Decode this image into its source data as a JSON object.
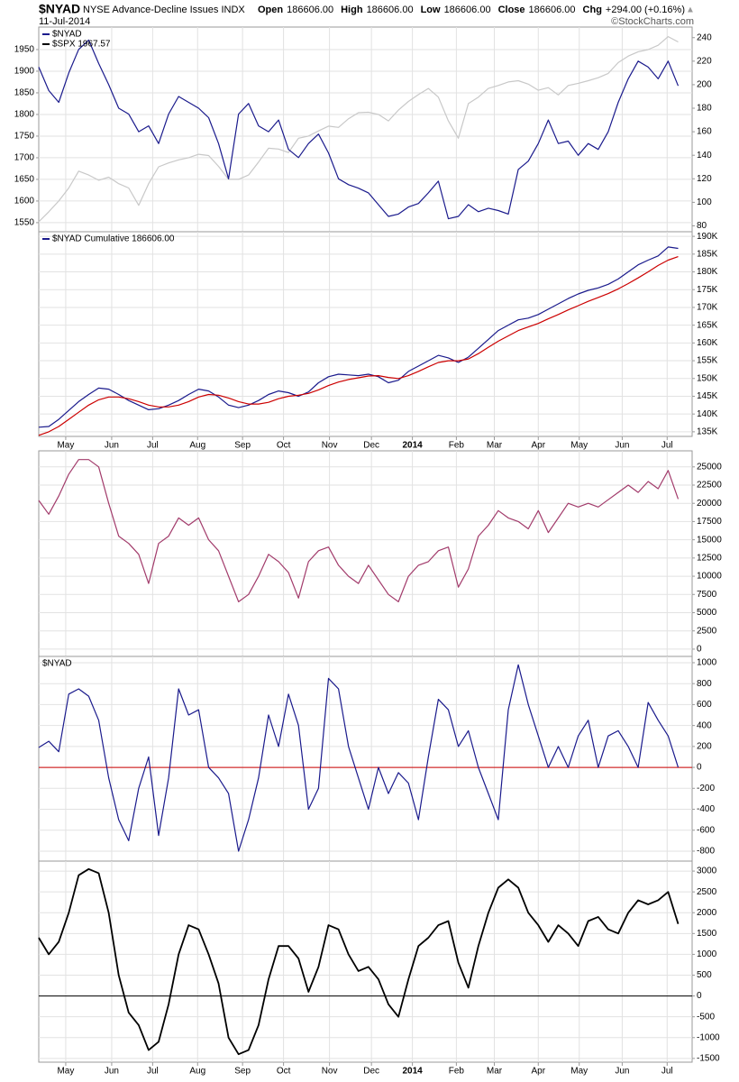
{
  "header": {
    "symbol": "$NYAD",
    "name": "NYSE Advance-Decline Issues INDX",
    "date": "11-Jul-2014",
    "quote": [
      {
        "label": "Open",
        "value": "186606.00"
      },
      {
        "label": "High",
        "value": "186606.00"
      },
      {
        "label": "Low",
        "value": "186606.00"
      },
      {
        "label": "Close",
        "value": "186606.00"
      },
      {
        "label": "Chg",
        "value": "+294.00 (+0.16%)"
      }
    ],
    "source": "©StockCharts.com"
  },
  "chart_data": [
    {
      "type": "line",
      "xlim": [
        0,
        65.4
      ],
      "ylim": [
        1529,
        2002
      ],
      "yticks": [
        1550,
        1600,
        1650,
        1700,
        1750,
        1800,
        1850,
        1900,
        1950
      ],
      "y_axis_side": "left",
      "y2lim": [
        75,
        249
      ],
      "y2ticks": [
        80,
        100,
        120,
        140,
        160,
        180,
        200,
        220,
        240
      ],
      "grid": true,
      "series": [
        {
          "name": "$NYAD",
          "color": "#1a1a8c",
          "axis": "y2",
          "values": [
            215,
            195,
            185,
            210,
            230,
            238,
            218,
            200,
            180,
            175,
            160,
            165,
            150,
            175,
            190,
            185,
            180,
            172,
            150,
            120,
            175,
            184,
            165,
            160,
            170,
            145,
            138,
            150,
            158,
            142,
            120,
            115,
            112,
            108,
            98,
            88,
            90,
            96,
            99,
            108,
            118,
            86,
            88,
            98,
            92,
            95,
            93,
            90,
            128,
            135,
            150,
            170,
            150,
            152,
            140,
            150,
            145,
            160,
            185,
            205,
            220,
            215,
            205,
            220,
            199
          ]
        },
        {
          "name": "$SPX 1967.57",
          "color": "#c8c8c8",
          "values": [
            1552,
            1575,
            1600,
            1630,
            1669,
            1660,
            1648,
            1655,
            1640,
            1630,
            1590,
            1640,
            1679,
            1688,
            1695,
            1700,
            1708,
            1705,
            1680,
            1650,
            1650,
            1660,
            1690,
            1722,
            1720,
            1712,
            1745,
            1750,
            1762,
            1773,
            1770,
            1790,
            1804,
            1805,
            1800,
            1785,
            1810,
            1830,
            1846,
            1860,
            1840,
            1785,
            1745,
            1825,
            1840,
            1860,
            1867,
            1875,
            1878,
            1870,
            1856,
            1862,
            1845,
            1867,
            1872,
            1878,
            1885,
            1895,
            1920,
            1935,
            1945,
            1950,
            1960,
            1980,
            1967.57
          ]
        }
      ]
    },
    {
      "type": "line",
      "xlim": [
        0,
        65.4
      ],
      "ylim": [
        133700,
        191300
      ],
      "y_axis_side": "right",
      "grid": true,
      "yticks": [
        {
          "value": 135000,
          "label": "135K"
        },
        {
          "value": 140000,
          "label": "140K"
        },
        {
          "value": 145000,
          "label": "145K"
        },
        {
          "value": 150000,
          "label": "150K"
        },
        {
          "value": 155000,
          "label": "155K"
        },
        {
          "value": 160000,
          "label": "160K"
        },
        {
          "value": 165000,
          "label": "165K"
        },
        {
          "value": 170000,
          "label": "170K"
        },
        {
          "value": 175000,
          "label": "175K"
        },
        {
          "value": 180000,
          "label": "180K"
        },
        {
          "value": 185000,
          "label": "185K"
        },
        {
          "value": 190000,
          "label": "190K"
        }
      ],
      "xticks": [
        {
          "value": 2.7,
          "label": "May"
        },
        {
          "value": 7.3,
          "label": "Jun"
        },
        {
          "value": 11.4,
          "label": "Jul"
        },
        {
          "value": 15.9,
          "label": "Aug"
        },
        {
          "value": 20.4,
          "label": "Sep"
        },
        {
          "value": 24.5,
          "label": "Oct"
        },
        {
          "value": 29.1,
          "label": "Nov"
        },
        {
          "value": 33.3,
          "label": "Dec"
        },
        {
          "value": 37.4,
          "label": "2014",
          "bold": true
        },
        {
          "value": 41.8,
          "label": "Feb"
        },
        {
          "value": 45.6,
          "label": "Mar"
        },
        {
          "value": 50.0,
          "label": "Apr"
        },
        {
          "value": 54.1,
          "label": "May"
        },
        {
          "value": 58.4,
          "label": "Jun"
        },
        {
          "value": 62.9,
          "label": "Jul"
        }
      ],
      "series": [
        {
          "name": "$NYAD Cumulative 186606.00",
          "color": "#1a1a8c",
          "values": [
            136300,
            136500,
            138500,
            141000,
            143500,
            145500,
            147300,
            147000,
            145500,
            143800,
            142500,
            141200,
            141500,
            142500,
            143800,
            145500,
            147000,
            146500,
            144800,
            142500,
            141800,
            142500,
            143800,
            145500,
            146500,
            146000,
            145000,
            146200,
            148800,
            150500,
            151200,
            151000,
            150800,
            151200,
            150500,
            148800,
            149500,
            152000,
            153500,
            155000,
            156500,
            155800,
            154500,
            156000,
            158500,
            161000,
            163500,
            165000,
            166500,
            167000,
            168000,
            169500,
            171000,
            172500,
            173800,
            174800,
            175500,
            176500,
            178000,
            180000,
            182000,
            183300,
            184500,
            187000,
            186606
          ]
        },
        {
          "color": "#cc0000",
          "values": [
            134000,
            135000,
            136500,
            138500,
            140500,
            142500,
            144000,
            144800,
            144800,
            144300,
            143500,
            142500,
            142000,
            142000,
            142500,
            143500,
            144800,
            145500,
            145300,
            144500,
            143500,
            142800,
            142800,
            143300,
            144300,
            145000,
            145300,
            145800,
            146800,
            148000,
            149000,
            149700,
            150200,
            150700,
            150800,
            150300,
            150000,
            150800,
            152000,
            153300,
            154500,
            155000,
            155000,
            155500,
            157000,
            158800,
            160500,
            162000,
            163500,
            164500,
            165500,
            166800,
            168000,
            169300,
            170500,
            171700,
            172800,
            173900,
            175200,
            176700,
            178300,
            180000,
            181800,
            183300,
            184300
          ]
        }
      ]
    },
    {
      "type": "line",
      "xlim": [
        0,
        65.4
      ],
      "ylim": [
        -1000,
        27200
      ],
      "y_axis_side": "right",
      "grid": true,
      "yticks": [
        0,
        2500,
        5000,
        7500,
        10000,
        12500,
        15000,
        17500,
        20000,
        22500,
        25000
      ],
      "series": [
        {
          "color": "#a23b6b",
          "values": [
            20400,
            18500,
            21000,
            24000,
            26000,
            26000,
            25000,
            20000,
            15500,
            14500,
            13000,
            9000,
            14500,
            15500,
            18000,
            17000,
            18000,
            15000,
            13500,
            10000,
            6500,
            7500,
            10000,
            13000,
            12000,
            10500,
            7000,
            12000,
            13500,
            14000,
            11500,
            10000,
            9000,
            11500,
            9500,
            7500,
            6500,
            10000,
            11500,
            12000,
            13500,
            14000,
            8500,
            11000,
            15500,
            17000,
            19000,
            18000,
            17500,
            16500,
            19000,
            16000,
            18000,
            20000,
            19500,
            20000,
            19500,
            20500,
            21500,
            22500,
            21500,
            23000,
            22000,
            24500,
            20600
          ]
        }
      ]
    },
    {
      "type": "line",
      "title": "$NYAD",
      "xlim": [
        0,
        65.4
      ],
      "ylim": [
        -895,
        1060
      ],
      "y_axis_side": "right",
      "grid": true,
      "zero_line_color": "#cc0000",
      "yticks": [
        -800,
        -600,
        -400,
        -200,
        0,
        200,
        400,
        600,
        800,
        1000
      ],
      "series": [
        {
          "color": "#1a1a8c",
          "values": [
            190,
            250,
            150,
            700,
            750,
            680,
            450,
            -100,
            -500,
            -700,
            -200,
            100,
            -650,
            -100,
            750,
            500,
            550,
            0,
            -100,
            -250,
            -800,
            -500,
            -100,
            500,
            200,
            700,
            400,
            -400,
            -200,
            850,
            750,
            200,
            -100,
            -400,
            0,
            -250,
            -50,
            -150,
            -500,
            100,
            650,
            550,
            200,
            350,
            0,
            -250,
            -500,
            550,
            980,
            600,
            300,
            0,
            200,
            0,
            300,
            450,
            0,
            300,
            350,
            200,
            0,
            620,
            450,
            300,
            0
          ]
        }
      ]
    },
    {
      "type": "line",
      "xlim": [
        0,
        65.4
      ],
      "ylim": [
        -1590,
        3240
      ],
      "y_axis_side": "right",
      "grid": true,
      "zero_line_color": "#000000",
      "yticks": [
        -1500,
        -1000,
        -500,
        0,
        500,
        1000,
        1500,
        2000,
        2500,
        3000
      ],
      "xticks": [
        {
          "value": 2.7,
          "label": "May"
        },
        {
          "value": 7.3,
          "label": "Jun"
        },
        {
          "value": 11.4,
          "label": "Jul"
        },
        {
          "value": 15.9,
          "label": "Aug"
        },
        {
          "value": 20.4,
          "label": "Sep"
        },
        {
          "value": 24.5,
          "label": "Oct"
        },
        {
          "value": 29.1,
          "label": "Nov"
        },
        {
          "value": 33.3,
          "label": "Dec"
        },
        {
          "value": 37.4,
          "label": "2014",
          "bold": true
        },
        {
          "value": 41.8,
          "label": "Feb"
        },
        {
          "value": 45.6,
          "label": "Mar"
        },
        {
          "value": 50.0,
          "label": "Apr"
        },
        {
          "value": 54.1,
          "label": "May"
        },
        {
          "value": 58.4,
          "label": "Jun"
        },
        {
          "value": 62.9,
          "label": "Jul"
        }
      ],
      "series": [
        {
          "color": "#000000",
          "values": [
            1400,
            1000,
            1300,
            2000,
            2900,
            3050,
            2950,
            2000,
            500,
            -400,
            -700,
            -1300,
            -1100,
            -200,
            1000,
            1700,
            1600,
            1000,
            300,
            -1000,
            -1400,
            -1300,
            -700,
            400,
            1200,
            1200,
            900,
            100,
            700,
            1700,
            1600,
            1000,
            600,
            700,
            400,
            -200,
            -500,
            400,
            1200,
            1400,
            1700,
            1800,
            800,
            200,
            1200,
            2000,
            2600,
            2800,
            2600,
            2000,
            1700,
            1300,
            1700,
            1500,
            1200,
            1800,
            1900,
            1600,
            1500,
            2000,
            2300,
            2200,
            2300,
            2500,
            1730
          ]
        }
      ]
    }
  ]
}
